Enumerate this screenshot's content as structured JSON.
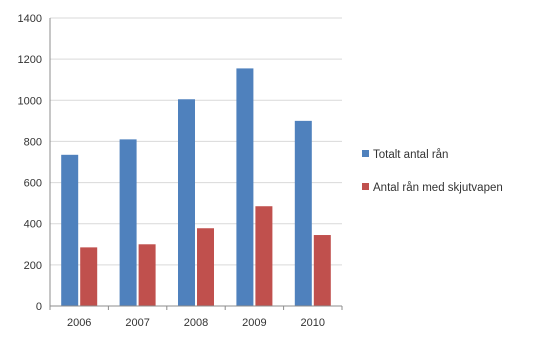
{
  "chart_data": {
    "type": "bar",
    "title": "",
    "xlabel": "",
    "ylabel": "",
    "categories": [
      "2006",
      "2007",
      "2008",
      "2009",
      "2010"
    ],
    "series": [
      {
        "name": "Totalt antal rån",
        "values": [
          735,
          810,
          1005,
          1155,
          900
        ],
        "color": "#4f81bd"
      },
      {
        "name": "Antal rån med skjutvapen",
        "values": [
          285,
          300,
          378,
          485,
          345
        ],
        "color": "#c0504d"
      }
    ],
    "ylim": [
      0,
      1400
    ],
    "yticks": [
      "0",
      "200",
      "400",
      "600",
      "800",
      "1000",
      "1200",
      "1400"
    ],
    "grid": true,
    "legend_position": "right"
  }
}
